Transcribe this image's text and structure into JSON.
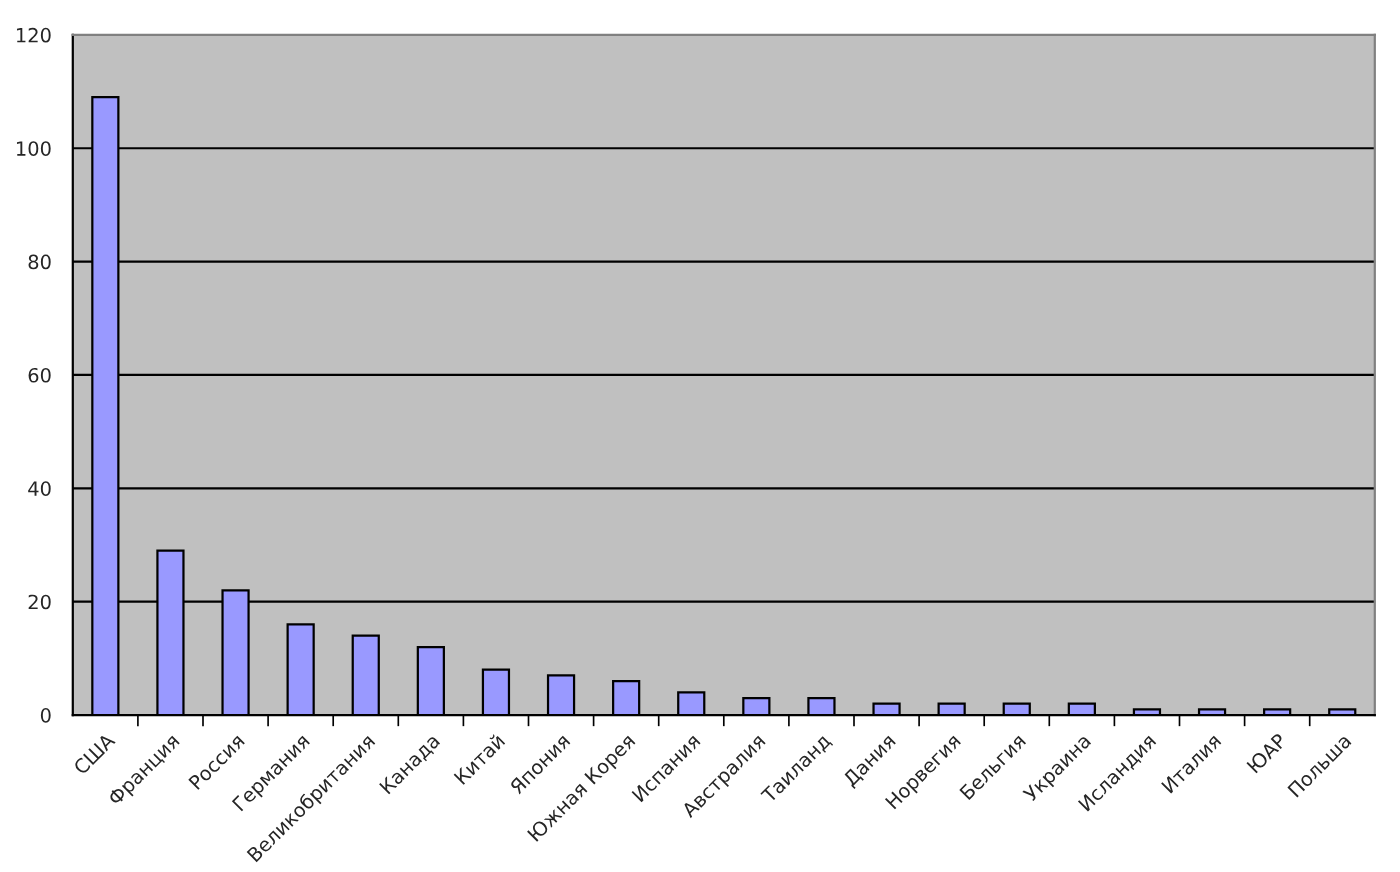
{
  "chart_data": {
    "type": "bar",
    "categories": [
      "США",
      "Франция",
      "Россия",
      "Германия",
      "Великобритания",
      "Канада",
      "Китай",
      "Япония",
      "Южная Корея",
      "Испания",
      "Австралия",
      "Таиланд",
      "Дания",
      "Норвегия",
      "Бельгия",
      "Украина",
      "Исландия",
      "Италия",
      "ЮАР",
      "Польша"
    ],
    "values": [
      109,
      29,
      22,
      16,
      14,
      12,
      8,
      7,
      6,
      4,
      3,
      3,
      2,
      2,
      2,
      2,
      1,
      1,
      1,
      1
    ],
    "color": "#9999ff",
    "ylim": [
      0,
      120
    ],
    "yticks": [
      0,
      20,
      40,
      60,
      80,
      100,
      120
    ],
    "grid": "y"
  }
}
